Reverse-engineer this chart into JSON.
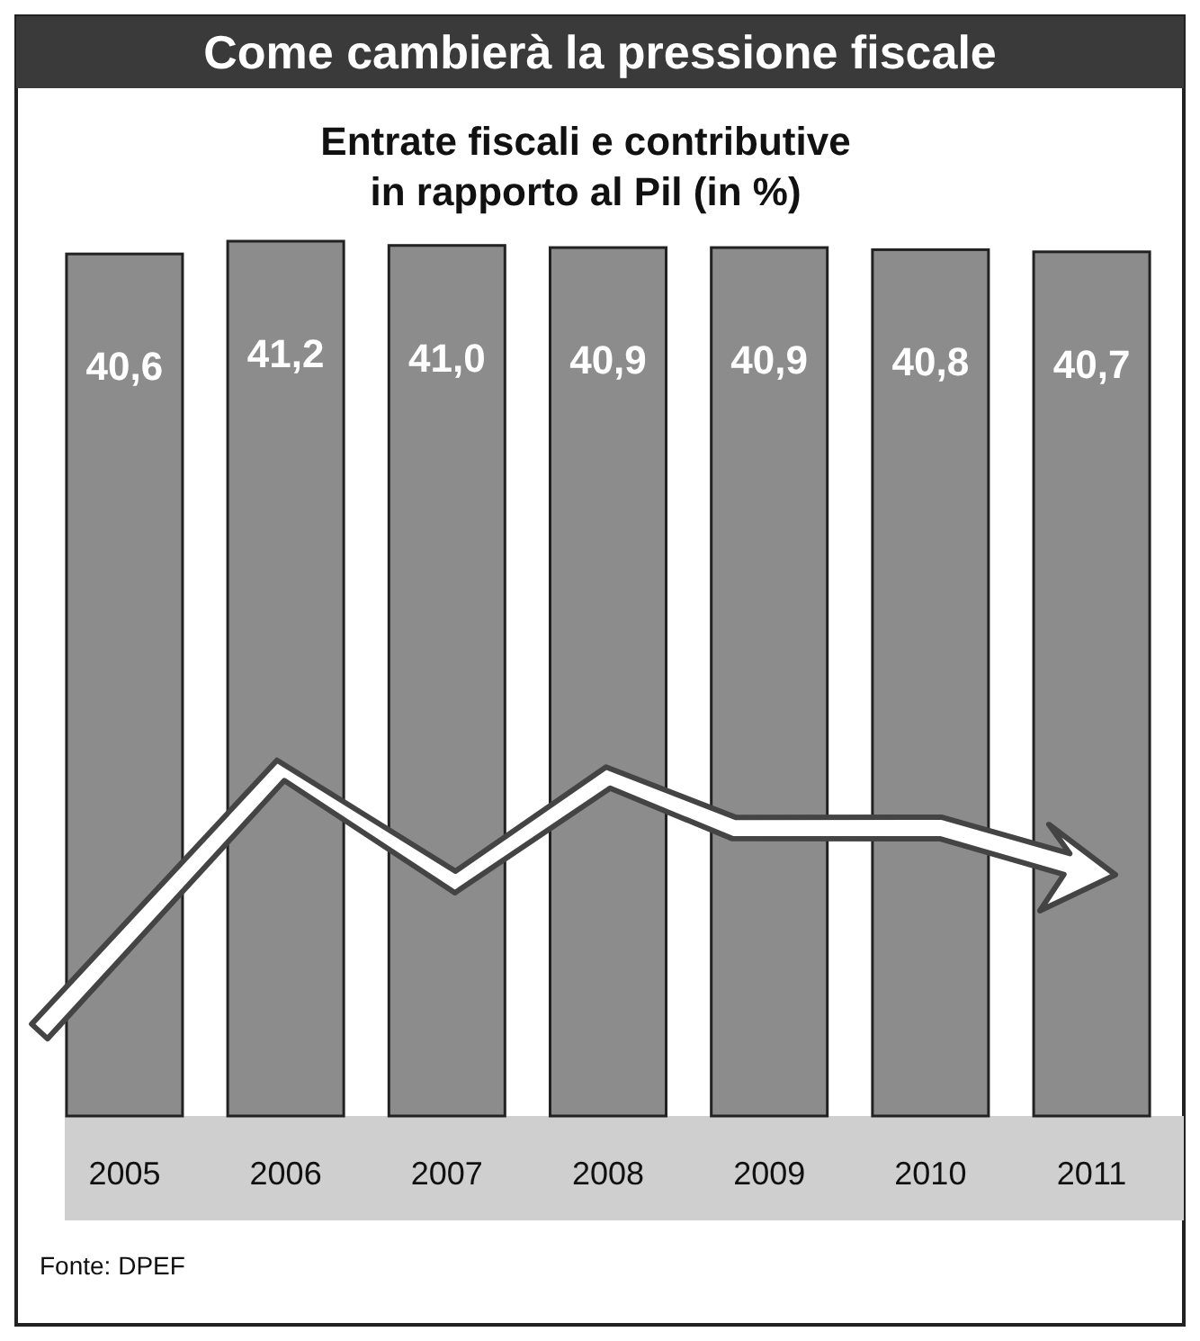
{
  "chart_data": {
    "type": "bar",
    "title": "Come cambierà la pressione fiscale",
    "subtitle": "Entrate fiscali e contributive\nin rapporto al Pil (in %)",
    "categories": [
      "2005",
      "2006",
      "2007",
      "2008",
      "2009",
      "2010",
      "2011"
    ],
    "values": [
      40.6,
      41.2,
      41.0,
      40.9,
      40.9,
      40.8,
      40.7
    ],
    "value_labels": [
      "40,6",
      "41,2",
      "41,0",
      "40,9",
      "40,9",
      "40,8",
      "40,7"
    ],
    "color": "#8c8c8c",
    "tick_labels": "x",
    "annotations": [
      "Fonte: DPEF"
    ]
  }
}
